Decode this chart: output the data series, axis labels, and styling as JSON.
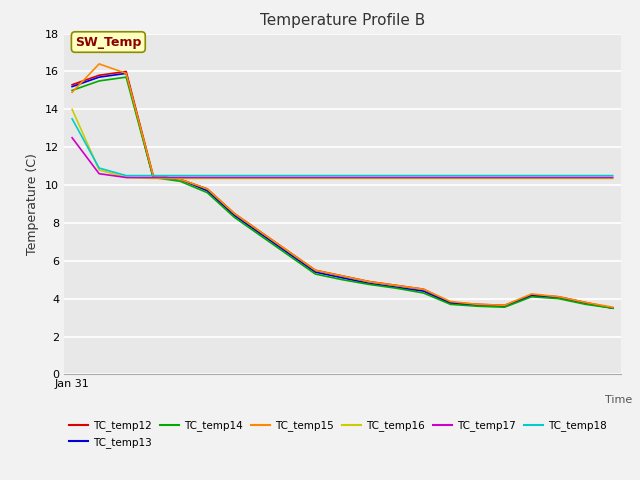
{
  "title": "Temperature Profile B",
  "xlabel": "Time",
  "ylabel": "Temperature (C)",
  "ylim": [
    0,
    18
  ],
  "fig_bg": "#f2f2f2",
  "plot_bg": "#e8e8e8",
  "annotation_text": "SW_Temp",
  "annotation_color": "#8B0000",
  "annotation_bg": "#FFFFC0",
  "annotation_edge": "#8B8B00",
  "series": {
    "TC_temp12": {
      "color": "#DD0000",
      "x": [
        0,
        1,
        2,
        3,
        4,
        5,
        6,
        7,
        8,
        9,
        10,
        11,
        12,
        13,
        14,
        15,
        16,
        17,
        18,
        19,
        20
      ],
      "y": [
        15.3,
        15.8,
        16.0,
        10.5,
        10.3,
        9.8,
        8.5,
        7.5,
        6.5,
        5.5,
        5.2,
        4.9,
        4.7,
        4.5,
        3.8,
        3.7,
        3.65,
        4.2,
        4.1,
        3.8,
        3.5
      ]
    },
    "TC_temp13": {
      "color": "#0000DD",
      "x": [
        0,
        1,
        2,
        3,
        4,
        5,
        6,
        7,
        8,
        9,
        10,
        11,
        12,
        13,
        14,
        15,
        16,
        17,
        18,
        19,
        20
      ],
      "y": [
        15.2,
        15.7,
        15.9,
        10.4,
        10.3,
        9.7,
        8.4,
        7.4,
        6.4,
        5.4,
        5.1,
        4.8,
        4.6,
        4.4,
        3.75,
        3.65,
        3.6,
        4.15,
        4.05,
        3.75,
        3.5
      ]
    },
    "TC_temp14": {
      "color": "#00AA00",
      "x": [
        0,
        1,
        2,
        3,
        4,
        5,
        6,
        7,
        8,
        9,
        10,
        11,
        12,
        13,
        14,
        15,
        16,
        17,
        18,
        19,
        20
      ],
      "y": [
        15.0,
        15.5,
        15.7,
        10.4,
        10.2,
        9.6,
        8.3,
        7.3,
        6.3,
        5.3,
        5.0,
        4.75,
        4.55,
        4.3,
        3.7,
        3.6,
        3.55,
        4.1,
        4.0,
        3.7,
        3.5
      ]
    },
    "TC_temp15": {
      "color": "#FF8800",
      "x": [
        0,
        1,
        2,
        3,
        4,
        5,
        6,
        7,
        8,
        9,
        10,
        11,
        12,
        13,
        14,
        15,
        16,
        17,
        18,
        19,
        20
      ],
      "y": [
        14.9,
        16.4,
        15.9,
        10.5,
        10.3,
        9.8,
        8.5,
        7.5,
        6.5,
        5.5,
        5.2,
        4.9,
        4.7,
        4.5,
        3.85,
        3.7,
        3.65,
        4.25,
        4.1,
        3.8,
        3.55
      ]
    },
    "TC_temp16": {
      "color": "#CCCC00",
      "x": [
        0,
        1,
        2,
        3,
        4,
        5,
        6,
        7,
        8,
        9,
        10,
        11,
        12,
        13,
        14,
        15,
        16,
        17,
        18,
        19,
        20
      ],
      "y": [
        14.0,
        10.8,
        10.4,
        10.35,
        10.35,
        10.35,
        10.35,
        10.35,
        10.35,
        10.35,
        10.35,
        10.35,
        10.35,
        10.35,
        10.35,
        10.35,
        10.35,
        10.35,
        10.35,
        10.35,
        10.35
      ]
    },
    "TC_temp17": {
      "color": "#CC00CC",
      "x": [
        0,
        1,
        2,
        3,
        4,
        5,
        6,
        7,
        8,
        9,
        10,
        11,
        12,
        13,
        14,
        15,
        16,
        17,
        18,
        19,
        20
      ],
      "y": [
        12.5,
        10.6,
        10.4,
        10.4,
        10.4,
        10.4,
        10.4,
        10.4,
        10.4,
        10.4,
        10.4,
        10.4,
        10.4,
        10.4,
        10.4,
        10.4,
        10.4,
        10.4,
        10.4,
        10.4,
        10.4
      ]
    },
    "TC_temp18": {
      "color": "#00CCCC",
      "x": [
        0,
        1,
        2,
        3,
        4,
        5,
        6,
        7,
        8,
        9,
        10,
        11,
        12,
        13,
        14,
        15,
        16,
        17,
        18,
        19,
        20
      ],
      "y": [
        13.5,
        10.9,
        10.5,
        10.5,
        10.5,
        10.5,
        10.5,
        10.5,
        10.5,
        10.5,
        10.5,
        10.5,
        10.5,
        10.5,
        10.5,
        10.5,
        10.5,
        10.5,
        10.5,
        10.5,
        10.5
      ]
    }
  },
  "grid_color": "#ffffff",
  "legend_order": [
    "TC_temp12",
    "TC_temp13",
    "TC_temp14",
    "TC_temp15",
    "TC_temp16",
    "TC_temp17",
    "TC_temp18"
  ]
}
